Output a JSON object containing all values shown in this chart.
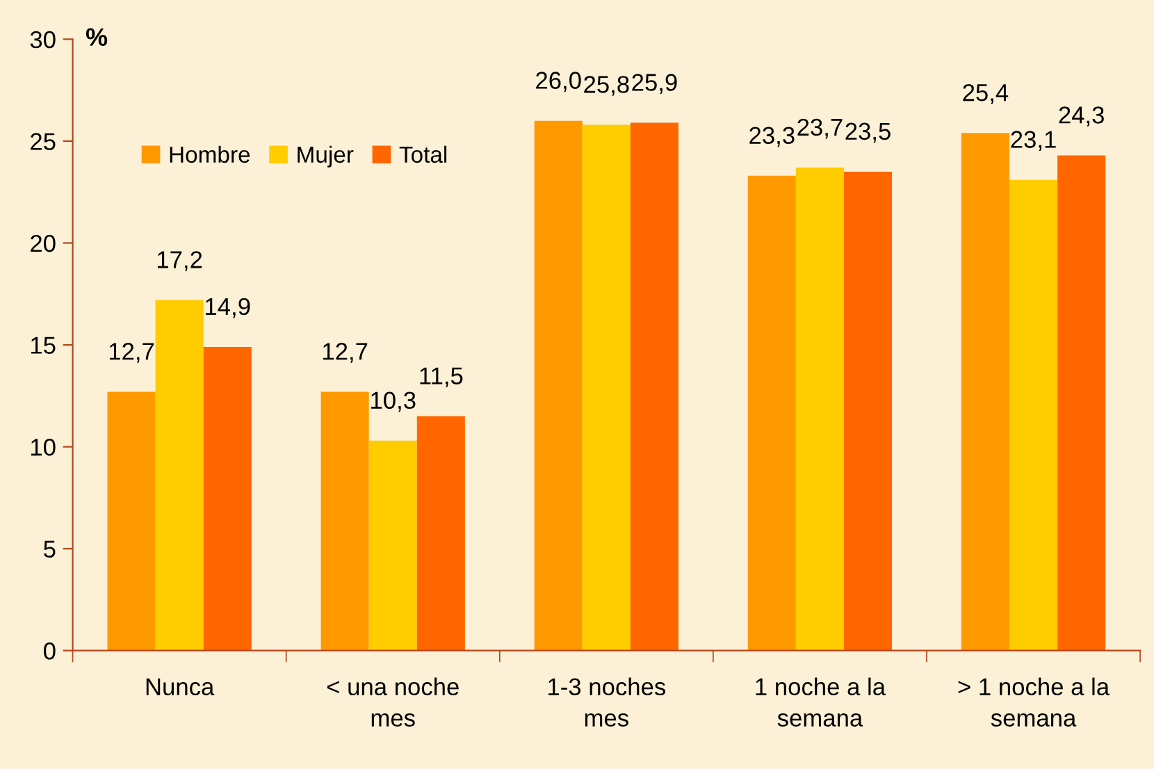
{
  "chart_data": {
    "type": "bar",
    "ylabel": "%",
    "categories": [
      "Nunca",
      "< una noche\nmes",
      "1-3 noches\nmes",
      "1 noche a la\nsemana",
      "> 1 noche a la\nsemana"
    ],
    "series": [
      {
        "name": "Hombre",
        "color": "#ff9900",
        "values": [
          12.7,
          12.7,
          26.0,
          23.3,
          25.4
        ],
        "value_labels": [
          "12,7",
          "12,7",
          "26,0",
          "23,3",
          "25,4"
        ]
      },
      {
        "name": "Mujer",
        "color": "#ffcc00",
        "values": [
          17.2,
          10.3,
          25.8,
          23.7,
          23.1
        ],
        "value_labels": [
          "17,2",
          "10,3",
          "25,8",
          "23,7",
          "23,1"
        ]
      },
      {
        "name": "Total",
        "color": "#ff6600",
        "values": [
          14.9,
          11.5,
          25.9,
          23.5,
          24.3
        ],
        "value_labels": [
          "14,9",
          "11,5",
          "25,9",
          "23,5",
          "24,3"
        ]
      }
    ],
    "ylim": [
      0,
      30
    ],
    "yticks": [
      0,
      5,
      10,
      15,
      20,
      25,
      30
    ],
    "grid": false,
    "legend": "top left"
  }
}
